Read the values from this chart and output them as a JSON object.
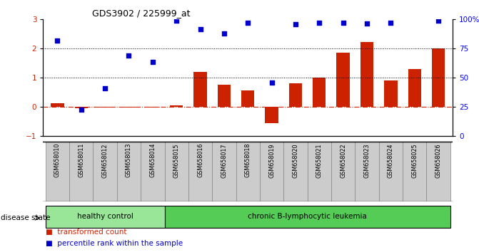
{
  "title": "GDS3902 / 225999_at",
  "samples": [
    "GSM658010",
    "GSM658011",
    "GSM658012",
    "GSM658013",
    "GSM658014",
    "GSM658015",
    "GSM658016",
    "GSM658017",
    "GSM658018",
    "GSM658019",
    "GSM658020",
    "GSM658021",
    "GSM658022",
    "GSM658023",
    "GSM658024",
    "GSM658025",
    "GSM658026"
  ],
  "transformed_count": [
    0.12,
    -0.05,
    -0.02,
    -0.03,
    -0.02,
    0.05,
    1.2,
    0.75,
    0.55,
    -0.55,
    0.8,
    1.0,
    1.85,
    2.22,
    0.9,
    1.3,
    2.0
  ],
  "percentile_rank": [
    2.25,
    -0.1,
    0.62,
    1.74,
    1.52,
    2.93,
    2.65,
    2.5,
    2.87,
    0.82,
    2.82,
    2.87,
    2.87,
    2.85,
    2.87,
    2.93
  ],
  "percentile_rank_indices": [
    0,
    1,
    2,
    3,
    4,
    5,
    6,
    7,
    8,
    9,
    10,
    11,
    12,
    13,
    14,
    16
  ],
  "bar_color": "#cc2200",
  "scatter_color": "#0000cc",
  "healthy_color": "#99e699",
  "leukemia_color": "#55cc55",
  "label_box_color": "#cccccc",
  "healthy_label": "healthy control",
  "leukemia_label": "chronic B-lymphocytic leukemia",
  "n_healthy": 5,
  "ylim": [
    -1,
    3
  ],
  "yticks_left": [
    -1,
    0,
    1,
    2,
    3
  ],
  "yticks_right_labels": [
    "0",
    "25",
    "50",
    "75",
    "100%"
  ],
  "disease_state_label": "disease state",
  "legend_bar_label": "transformed count",
  "legend_scatter_label": "percentile rank within the sample"
}
